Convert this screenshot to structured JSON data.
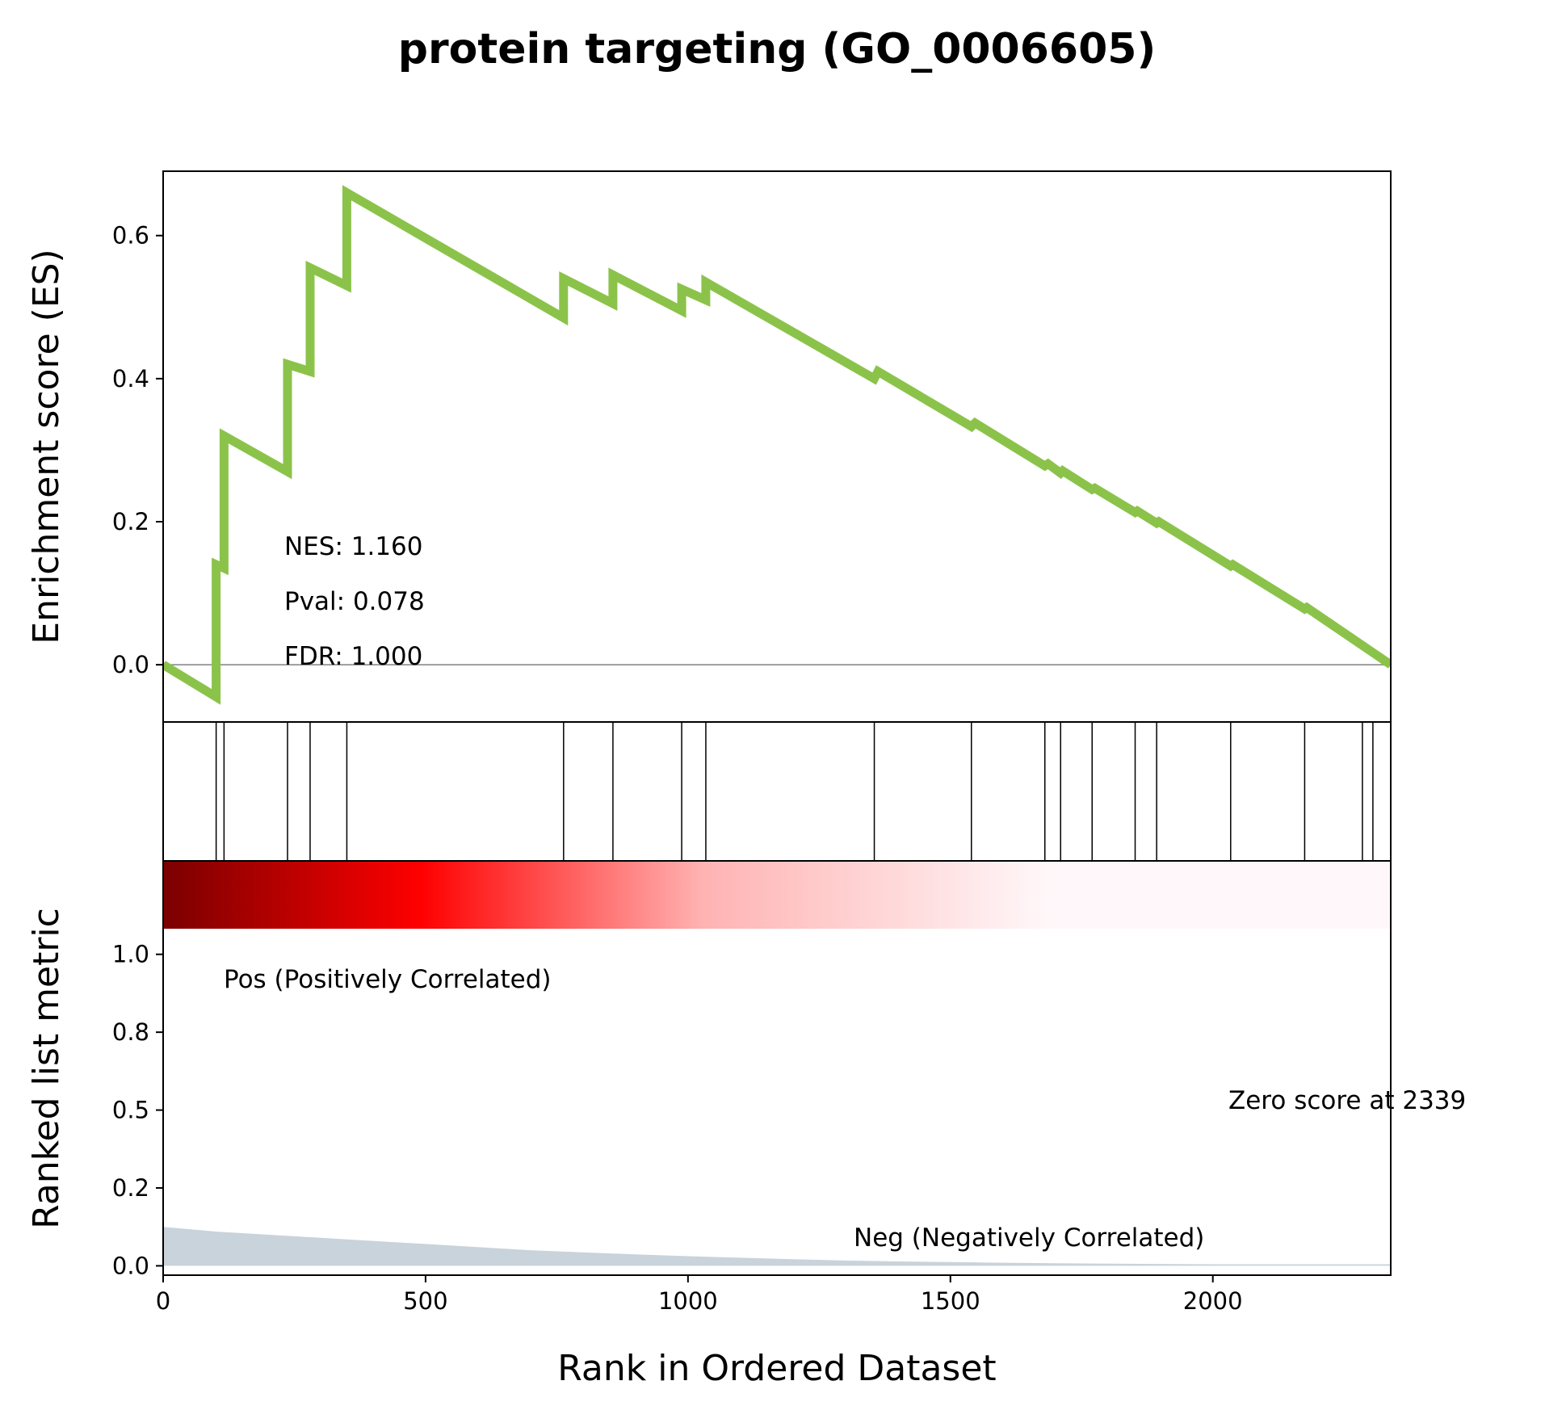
{
  "chart_data": {
    "type": "line",
    "title": "protein targeting (GO_0006605)",
    "xlabel": "Rank in Ordered Dataset",
    "xlim": [
      0,
      2339
    ],
    "x_ticks": [
      "0",
      "500",
      "1000",
      "1500",
      "2000"
    ],
    "x_tick_values": [
      0,
      500,
      1000,
      1500,
      2000
    ],
    "es_panel": {
      "ylabel": "Enrichment score (ES)",
      "ylim": [
        -0.08,
        0.69
      ],
      "y_ticks": [
        "0.0",
        "0.2",
        "0.4",
        "0.6"
      ],
      "y_tick_values": [
        0.0,
        0.2,
        0.4,
        0.6
      ],
      "line_color": "#8bc34a",
      "x": [
        0,
        101,
        101,
        116,
        116,
        237,
        237,
        280,
        280,
        350,
        350,
        763,
        763,
        857,
        857,
        988,
        988,
        1034,
        1034,
        1355,
        1362,
        1540,
        1547,
        1680,
        1686,
        1710,
        1714,
        1770,
        1775,
        1852,
        1856,
        1893,
        1897,
        2034,
        2038,
        2175,
        2179,
        2339
      ],
      "y": [
        0.0,
        -0.045,
        0.14,
        0.135,
        0.32,
        0.27,
        0.42,
        0.41,
        0.555,
        0.53,
        0.66,
        0.485,
        0.54,
        0.505,
        0.545,
        0.495,
        0.525,
        0.51,
        0.535,
        0.4,
        0.41,
        0.333,
        0.338,
        0.278,
        0.281,
        0.268,
        0.271,
        0.245,
        0.247,
        0.213,
        0.215,
        0.198,
        0.2,
        0.138,
        0.14,
        0.078,
        0.08,
        0.0
      ]
    },
    "hits": [
      101,
      116,
      237,
      280,
      350,
      763,
      857,
      988,
      1034,
      1355,
      1540,
      1680,
      1710,
      1770,
      1852,
      1893,
      2034,
      2175,
      2285,
      2305
    ],
    "metric_panel": {
      "ylabel": "Ranked list metric",
      "ylim": [
        -0.03,
        1.3
      ],
      "y_ticks": [
        "0.0",
        "0.2",
        "0.5",
        "0.8",
        "1.0"
      ],
      "y_tick_values": [
        0.0,
        0.25,
        0.5,
        0.75,
        1.0
      ],
      "fill_color": "#c9d3db",
      "x": [
        0,
        100,
        200,
        300,
        400,
        500,
        600,
        700,
        800,
        900,
        1000,
        1100,
        1200,
        1300,
        1400,
        1500,
        1600,
        1700,
        1800,
        1900,
        2000,
        2339
      ],
      "y": [
        0.125,
        0.11,
        0.1,
        0.09,
        0.08,
        0.07,
        0.06,
        0.05,
        0.043,
        0.037,
        0.031,
        0.026,
        0.021,
        0.017,
        0.014,
        0.012,
        0.01,
        0.008,
        0.007,
        0.006,
        0.005,
        0.005
      ]
    },
    "annotations": {
      "nes": "NES: 1.160",
      "pval": "Pval: 0.078",
      "fdr": "FDR: 1.000",
      "pos": "Pos (Positively Correlated)",
      "neg": "Neg (Negatively Correlated)",
      "zero": "Zero score at 2339"
    },
    "colors": {
      "pos_text": "#ff0000",
      "neg_text": "#0000ff",
      "heat_start": "#7a0000",
      "heat_mid": "#ff0000",
      "heat_end": "#fff7f9"
    }
  }
}
